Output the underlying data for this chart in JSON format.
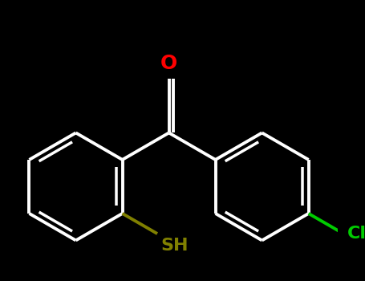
{
  "background_color": "#000000",
  "bond_color": "#ffffff",
  "bond_width": 2.8,
  "atom_colors": {
    "O": "#ff0000",
    "S": "#808000",
    "Cl": "#00cc00",
    "C": "#ffffff",
    "H": "#ffffff"
  },
  "font_size_O": 18,
  "font_size_SH": 16,
  "font_size_Cl": 16,
  "xlim": [
    -2.2,
    2.2
  ],
  "ylim": [
    -1.6,
    1.4
  ]
}
